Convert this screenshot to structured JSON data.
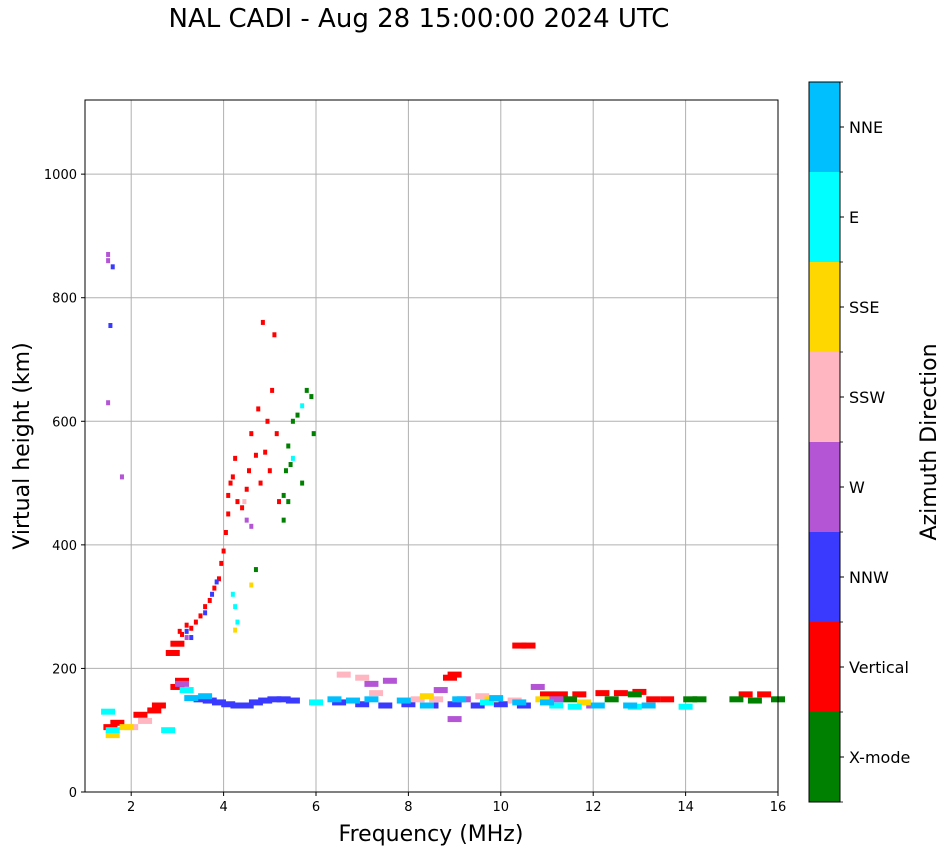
{
  "chart_data": {
    "type": "scatter",
    "title": "NAL CADI - Aug 28 15:00:00 2024 UTC",
    "xlabel": "Frequency (MHz)",
    "ylabel": "Virtual height (km)",
    "xlim": [
      1,
      16
    ],
    "ylim": [
      0,
      1120
    ],
    "xticks": [
      2,
      4,
      6,
      8,
      10,
      12,
      14,
      16
    ],
    "yticks": [
      0,
      200,
      400,
      600,
      800,
      1000
    ],
    "grid": true,
    "colorbar": {
      "label": "Azimuth Direction",
      "categories": [
        {
          "name": "X-mode",
          "color": "#008000"
        },
        {
          "name": "Vertical",
          "color": "#ff0000"
        },
        {
          "name": "NNW",
          "color": "#3a3aff"
        },
        {
          "name": "W",
          "color": "#b455d6"
        },
        {
          "name": "SSW",
          "color": "#ffb6c1"
        },
        {
          "name": "SSE",
          "color": "#ffd700"
        },
        {
          "name": "E",
          "color": "#00ffff"
        },
        {
          "name": "NNE",
          "color": "#00bfff"
        }
      ]
    },
    "series": [
      {
        "name": "Vertical",
        "points": [
          [
            1.55,
            105
          ],
          [
            1.7,
            112
          ],
          [
            2.2,
            125
          ],
          [
            2.5,
            132
          ],
          [
            2.6,
            140
          ],
          [
            2.9,
            225
          ],
          [
            3.0,
            240
          ],
          [
            3.05,
            260
          ],
          [
            3.1,
            255
          ],
          [
            3.2,
            270
          ],
          [
            3.3,
            265
          ],
          [
            3.4,
            275
          ],
          [
            3.5,
            285
          ],
          [
            3.6,
            300
          ],
          [
            3.7,
            310
          ],
          [
            3.8,
            330
          ],
          [
            3.9,
            345
          ],
          [
            3.95,
            370
          ],
          [
            4.0,
            390
          ],
          [
            4.05,
            420
          ],
          [
            4.1,
            450
          ],
          [
            4.1,
            480
          ],
          [
            4.15,
            500
          ],
          [
            4.2,
            510
          ],
          [
            4.25,
            540
          ],
          [
            4.3,
            470
          ],
          [
            4.4,
            460
          ],
          [
            4.5,
            490
          ],
          [
            4.55,
            520
          ],
          [
            4.6,
            580
          ],
          [
            4.7,
            545
          ],
          [
            4.75,
            620
          ],
          [
            4.8,
            500
          ],
          [
            4.85,
            760
          ],
          [
            4.9,
            550
          ],
          [
            4.95,
            600
          ],
          [
            5.0,
            520
          ],
          [
            5.05,
            650
          ],
          [
            5.1,
            740
          ],
          [
            5.15,
            580
          ],
          [
            5.2,
            470
          ],
          [
            3.0,
            170
          ],
          [
            3.1,
            180
          ],
          [
            10.4,
            237
          ],
          [
            10.6,
            237
          ],
          [
            11.0,
            158
          ],
          [
            11.3,
            158
          ],
          [
            11.7,
            158
          ],
          [
            12.2,
            160
          ],
          [
            12.6,
            160
          ],
          [
            13.0,
            162
          ],
          [
            13.3,
            150
          ],
          [
            13.6,
            150
          ],
          [
            15.3,
            158
          ],
          [
            15.7,
            158
          ],
          [
            9.0,
            190
          ],
          [
            8.9,
            185
          ]
        ]
      },
      {
        "name": "X-mode",
        "points": [
          [
            5.3,
            480
          ],
          [
            5.35,
            520
          ],
          [
            5.4,
            560
          ],
          [
            5.45,
            530
          ],
          [
            5.5,
            600
          ],
          [
            5.6,
            610
          ],
          [
            5.7,
            500
          ],
          [
            5.8,
            650
          ],
          [
            5.9,
            640
          ],
          [
            5.95,
            580
          ],
          [
            5.3,
            440
          ],
          [
            5.4,
            470
          ],
          [
            4.7,
            360
          ],
          [
            14.1,
            150
          ],
          [
            14.3,
            150
          ],
          [
            15.1,
            150
          ],
          [
            15.5,
            148
          ],
          [
            16.0,
            150
          ],
          [
            12.4,
            150
          ],
          [
            12.9,
            158
          ],
          [
            11.5,
            150
          ]
        ]
      },
      {
        "name": "NNW",
        "points": [
          [
            3.5,
            150
          ],
          [
            3.7,
            148
          ],
          [
            3.9,
            145
          ],
          [
            4.1,
            142
          ],
          [
            4.3,
            140
          ],
          [
            4.5,
            140
          ],
          [
            4.7,
            145
          ],
          [
            4.9,
            148
          ],
          [
            5.1,
            150
          ],
          [
            5.3,
            150
          ],
          [
            5.5,
            148
          ],
          [
            6.5,
            145
          ],
          [
            7.0,
            142
          ],
          [
            7.5,
            140
          ],
          [
            8.0,
            142
          ],
          [
            8.5,
            140
          ],
          [
            9.0,
            142
          ],
          [
            9.5,
            140
          ],
          [
            10.0,
            142
          ],
          [
            10.5,
            140
          ],
          [
            3.2,
            260
          ],
          [
            3.3,
            250
          ],
          [
            3.6,
            290
          ],
          [
            3.75,
            320
          ],
          [
            3.85,
            340
          ],
          [
            1.55,
            755
          ],
          [
            1.6,
            850
          ]
        ]
      },
      {
        "name": "W",
        "points": [
          [
            1.5,
            870
          ],
          [
            1.5,
            860
          ],
          [
            1.5,
            630
          ],
          [
            1.8,
            510
          ],
          [
            4.5,
            440
          ],
          [
            4.6,
            430
          ],
          [
            7.2,
            175
          ],
          [
            7.6,
            180
          ],
          [
            8.7,
            165
          ],
          [
            9.2,
            150
          ],
          [
            9.0,
            118
          ],
          [
            10.8,
            170
          ],
          [
            11.2,
            150
          ],
          [
            3.1,
            175
          ],
          [
            3.2,
            250
          ],
          [
            12.0,
            140
          ]
        ]
      },
      {
        "name": "SSW",
        "points": [
          [
            2.0,
            105
          ],
          [
            2.3,
            115
          ],
          [
            6.6,
            190
          ],
          [
            7.0,
            185
          ],
          [
            7.3,
            160
          ],
          [
            8.2,
            150
          ],
          [
            8.6,
            150
          ],
          [
            9.6,
            155
          ],
          [
            10.3,
            148
          ],
          [
            4.45,
            470
          ]
        ]
      },
      {
        "name": "SSE",
        "points": [
          [
            1.6,
            92
          ],
          [
            1.9,
            105
          ],
          [
            4.6,
            335
          ],
          [
            8.4,
            155
          ],
          [
            9.8,
            150
          ],
          [
            10.9,
            150
          ],
          [
            11.8,
            145
          ],
          [
            4.25,
            262
          ]
        ]
      },
      {
        "name": "E",
        "points": [
          [
            1.5,
            130
          ],
          [
            1.6,
            100
          ],
          [
            2.8,
            100
          ],
          [
            3.2,
            165
          ],
          [
            4.2,
            320
          ],
          [
            4.25,
            300
          ],
          [
            4.3,
            275
          ],
          [
            5.7,
            625
          ],
          [
            6.0,
            145
          ],
          [
            9.7,
            145
          ],
          [
            11.2,
            140
          ],
          [
            11.6,
            138
          ],
          [
            12.9,
            138
          ],
          [
            14.0,
            138
          ],
          [
            5.5,
            540
          ]
        ]
      },
      {
        "name": "NNE",
        "points": [
          [
            3.3,
            152
          ],
          [
            3.6,
            155
          ],
          [
            6.4,
            150
          ],
          [
            6.8,
            148
          ],
          [
            7.2,
            150
          ],
          [
            7.9,
            148
          ],
          [
            8.4,
            140
          ],
          [
            9.1,
            150
          ],
          [
            9.9,
            152
          ],
          [
            10.4,
            145
          ],
          [
            11.0,
            145
          ],
          [
            12.1,
            140
          ],
          [
            12.8,
            140
          ],
          [
            13.2,
            140
          ]
        ]
      }
    ]
  }
}
